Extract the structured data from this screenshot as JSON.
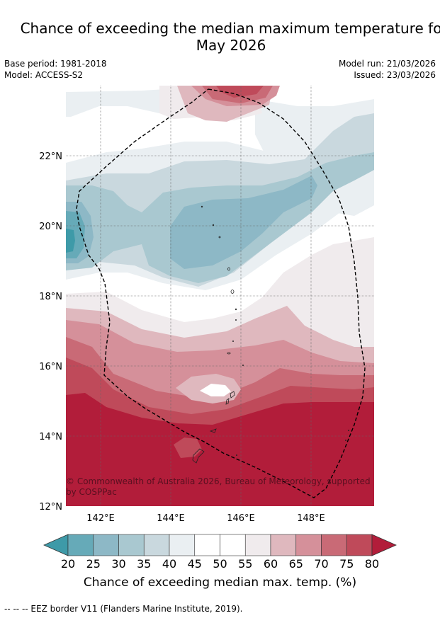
{
  "title": {
    "line1": "Chance of exceeding the median maximum temperature fo",
    "line2": "May 2026"
  },
  "meta": {
    "base_period": "Base period: 1981-2018",
    "model": "Model: ACCESS-S2",
    "model_run": "Model run: 21/03/2026",
    "issued": "Issued: 23/03/2026"
  },
  "map": {
    "lat_ticks": [
      "22°N",
      "20°N",
      "18°N",
      "16°N",
      "14°N",
      "12°N"
    ],
    "lon_ticks": [
      "142°E",
      "144°E",
      "146°E",
      "148°E"
    ],
    "copyright": "© Commonwealth of Australia 2026, Bureau of Meteorology, supported by COSPPac",
    "copyright_line1": "© Commonwealth of Australia 2026, Bureau of Meteorology, supported",
    "copyright_line2": "by COSPPac"
  },
  "colorbar": {
    "ticks": [
      "20",
      "25",
      "30",
      "35",
      "40",
      "45",
      "50",
      "55",
      "60",
      "65",
      "70",
      "75",
      "80"
    ],
    "colors": [
      "#3e9aa8",
      "#66aab8",
      "#8db8c6",
      "#a9c8d0",
      "#c9d8de",
      "#eaeff2",
      "#ffffff",
      "#ffffff",
      "#f0ebed",
      "#dfb8be",
      "#d5909a",
      "#c96a76",
      "#bf4a5a",
      "#b21d3a"
    ],
    "label": "Chance of exceeding median max. temp. (%)"
  },
  "footnote": "--  --  -- EEZ border V11 (Flanders Marine Institute, 2019)."
}
